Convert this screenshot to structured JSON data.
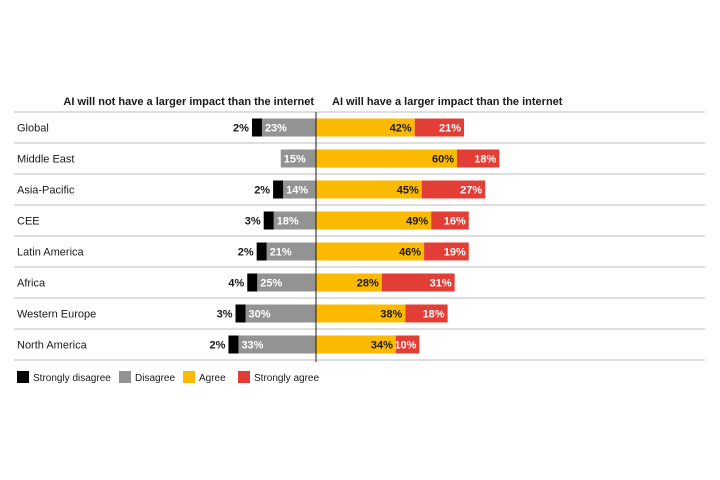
{
  "chart_data": {
    "type": "bar",
    "orientation": "horizontal-diverging",
    "headers": {
      "left": "AI will not have a larger impact than the internet",
      "right": "AI will have a larger impact than the internet"
    },
    "categories": [
      "Global",
      "Middle East",
      "Asia-Pacific",
      "CEE",
      "Latin America",
      "Africa",
      "Western Europe",
      "North America"
    ],
    "series": [
      {
        "name": "Strongly disagree",
        "side": "left",
        "color": "#000000",
        "values": [
          2,
          null,
          2,
          3,
          2,
          4,
          3,
          2
        ],
        "labels": [
          "2%",
          "",
          "2%",
          "3%",
          "2%",
          "4%",
          "3%",
          "2%"
        ]
      },
      {
        "name": "Disagree",
        "side": "left",
        "color": "#939393",
        "values": [
          23,
          15,
          14,
          18,
          21,
          25,
          30,
          33
        ],
        "labels": [
          "23%",
          "15%",
          "14%",
          "18%",
          "21%",
          "25%",
          "30%",
          "33%"
        ]
      },
      {
        "name": "Agree",
        "side": "right",
        "color": "#fbb900",
        "values": [
          42,
          60,
          45,
          49,
          46,
          28,
          38,
          34
        ],
        "labels": [
          "42%",
          "60%",
          "45%",
          "49%",
          "46%",
          "28%",
          "38%",
          "34%"
        ]
      },
      {
        "name": "Strongly agree",
        "side": "right",
        "color": "#e33e36",
        "values": [
          21,
          18,
          27,
          16,
          19,
          31,
          18,
          10
        ],
        "labels": [
          "21%",
          "18%",
          "27%",
          "16%",
          "19%",
          "31%",
          "18%",
          "10%"
        ]
      }
    ],
    "legend_order": [
      "Strongly disagree",
      "Disagree",
      "Agree",
      "Strongly agree"
    ],
    "legend_position": "bottom-left",
    "grid": false
  }
}
